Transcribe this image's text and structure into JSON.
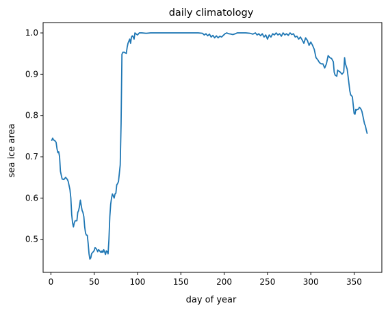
{
  "chart_data": {
    "type": "line",
    "title": "daily climatology",
    "xlabel": "day of year",
    "ylabel": "sea ice area",
    "xlim": [
      -9,
      382
    ],
    "ylim": [
      0.42,
      1.025
    ],
    "xticks": [
      0,
      50,
      100,
      150,
      200,
      250,
      300,
      350
    ],
    "xtick_labels": [
      "0",
      "50",
      "100",
      "150",
      "200",
      "250",
      "300",
      "350"
    ],
    "yticks": [
      0.5,
      0.6,
      0.7,
      0.8,
      0.9,
      1.0
    ],
    "ytick_labels": [
      "0.5",
      "0.6",
      "0.7",
      "0.8",
      "0.9",
      "1.0"
    ],
    "grid": false,
    "series": [
      {
        "color": "#1f77b4",
        "points": [
          [
            1,
            0.74
          ],
          [
            2,
            0.745
          ],
          [
            3,
            0.741
          ],
          [
            5,
            0.738
          ],
          [
            6,
            0.735
          ],
          [
            7,
            0.72
          ],
          [
            8,
            0.71
          ],
          [
            9,
            0.712
          ],
          [
            10,
            0.7
          ],
          [
            11,
            0.665
          ],
          [
            12,
            0.655
          ],
          [
            13,
            0.646
          ],
          [
            15,
            0.645
          ],
          [
            17,
            0.65
          ],
          [
            19,
            0.645
          ],
          [
            20,
            0.64
          ],
          [
            22,
            0.62
          ],
          [
            23,
            0.6
          ],
          [
            24,
            0.56
          ],
          [
            25,
            0.54
          ],
          [
            26,
            0.53
          ],
          [
            27,
            0.54
          ],
          [
            28,
            0.545
          ],
          [
            30,
            0.545
          ],
          [
            31,
            0.565
          ],
          [
            32,
            0.57
          ],
          [
            33,
            0.58
          ],
          [
            34,
            0.595
          ],
          [
            35,
            0.582
          ],
          [
            36,
            0.57
          ],
          [
            37,
            0.565
          ],
          [
            38,
            0.555
          ],
          [
            39,
            0.53
          ],
          [
            40,
            0.515
          ],
          [
            41,
            0.51
          ],
          [
            42,
            0.51
          ],
          [
            43,
            0.49
          ],
          [
            44,
            0.465
          ],
          [
            45,
            0.452
          ],
          [
            46,
            0.455
          ],
          [
            47,
            0.465
          ],
          [
            48,
            0.468
          ],
          [
            49,
            0.47
          ],
          [
            50,
            0.473
          ],
          [
            51,
            0.48
          ],
          [
            52,
            0.478
          ],
          [
            53,
            0.475
          ],
          [
            54,
            0.47
          ],
          [
            55,
            0.475
          ],
          [
            56,
            0.473
          ],
          [
            57,
            0.47
          ],
          [
            58,
            0.468
          ],
          [
            59,
            0.472
          ],
          [
            60,
            0.468
          ],
          [
            61,
            0.475
          ],
          [
            62,
            0.47
          ],
          [
            63,
            0.463
          ],
          [
            64,
            0.472
          ],
          [
            65,
            0.47
          ],
          [
            66,
            0.465
          ],
          [
            67,
            0.5
          ],
          [
            68,
            0.555
          ],
          [
            69,
            0.585
          ],
          [
            70,
            0.6
          ],
          [
            71,
            0.61
          ],
          [
            72,
            0.605
          ],
          [
            73,
            0.6
          ],
          [
            74,
            0.61
          ],
          [
            75,
            0.612
          ],
          [
            76,
            0.632
          ],
          [
            77,
            0.635
          ],
          [
            78,
            0.64
          ],
          [
            79,
            0.66
          ],
          [
            80,
            0.68
          ],
          [
            81,
            0.78
          ],
          [
            82,
            0.948
          ],
          [
            83,
            0.953
          ],
          [
            85,
            0.953
          ],
          [
            87,
            0.95
          ],
          [
            88,
            0.965
          ],
          [
            89,
            0.975
          ],
          [
            90,
            0.98
          ],
          [
            91,
            0.985
          ],
          [
            92,
            0.975
          ],
          [
            93,
            0.99
          ],
          [
            94,
            0.993
          ],
          [
            95,
            0.99
          ],
          [
            96,
            0.985
          ],
          [
            97,
            1.0
          ],
          [
            98,
            0.998
          ],
          [
            100,
            0.995
          ],
          [
            102,
            1.0
          ],
          [
            105,
            1.0
          ],
          [
            110,
            0.999
          ],
          [
            115,
            1.0
          ],
          [
            120,
            1.0
          ],
          [
            130,
            1.0
          ],
          [
            140,
            1.0
          ],
          [
            150,
            1.0
          ],
          [
            160,
            1.0
          ],
          [
            170,
            1.0
          ],
          [
            175,
            0.999
          ],
          [
            177,
            0.995
          ],
          [
            179,
            0.998
          ],
          [
            181,
            0.993
          ],
          [
            183,
            0.997
          ],
          [
            185,
            0.99
          ],
          [
            187,
            0.994
          ],
          [
            189,
            0.988
          ],
          [
            191,
            0.993
          ],
          [
            193,
            0.988
          ],
          [
            195,
            0.992
          ],
          [
            197,
            0.99
          ],
          [
            199,
            0.994
          ],
          [
            201,
            0.998
          ],
          [
            203,
            1.0
          ],
          [
            205,
            0.998
          ],
          [
            208,
            0.997
          ],
          [
            210,
            0.996
          ],
          [
            213,
            0.998
          ],
          [
            215,
            1.0
          ],
          [
            220,
            1.0
          ],
          [
            225,
            1.0
          ],
          [
            230,
            0.999
          ],
          [
            233,
            0.997
          ],
          [
            236,
            1.0
          ],
          [
            238,
            0.995
          ],
          [
            240,
            0.998
          ],
          [
            242,
            0.993
          ],
          [
            244,
            0.998
          ],
          [
            246,
            0.99
          ],
          [
            248,
            0.995
          ],
          [
            250,
            0.985
          ],
          [
            252,
            0.995
          ],
          [
            254,
            0.99
          ],
          [
            256,
            0.998
          ],
          [
            258,
            0.995
          ],
          [
            260,
            1.0
          ],
          [
            262,
            0.995
          ],
          [
            264,
            0.998
          ],
          [
            266,
            0.992
          ],
          [
            268,
            1.0
          ],
          [
            270,
            0.995
          ],
          [
            272,
            0.998
          ],
          [
            274,
            0.994
          ],
          [
            276,
            1.0
          ],
          [
            278,
            0.996
          ],
          [
            280,
            0.998
          ],
          [
            282,
            0.99
          ],
          [
            284,
            0.992
          ],
          [
            286,
            0.985
          ],
          [
            288,
            0.99
          ],
          [
            290,
            0.983
          ],
          [
            292,
            0.975
          ],
          [
            294,
            0.988
          ],
          [
            296,
            0.982
          ],
          [
            298,
            0.97
          ],
          [
            300,
            0.978
          ],
          [
            302,
            0.97
          ],
          [
            304,
            0.96
          ],
          [
            306,
            0.94
          ],
          [
            308,
            0.935
          ],
          [
            310,
            0.928
          ],
          [
            312,
            0.925
          ],
          [
            314,
            0.925
          ],
          [
            316,
            0.915
          ],
          [
            318,
            0.925
          ],
          [
            320,
            0.945
          ],
          [
            322,
            0.94
          ],
          [
            324,
            0.938
          ],
          [
            326,
            0.93
          ],
          [
            327,
            0.905
          ],
          [
            328,
            0.898
          ],
          [
            330,
            0.895
          ],
          [
            331,
            0.91
          ],
          [
            332,
            0.908
          ],
          [
            334,
            0.905
          ],
          [
            336,
            0.9
          ],
          [
            338,
            0.905
          ],
          [
            339,
            0.94
          ],
          [
            340,
            0.925
          ],
          [
            342,
            0.912
          ],
          [
            343,
            0.895
          ],
          [
            344,
            0.878
          ],
          [
            345,
            0.86
          ],
          [
            346,
            0.85
          ],
          [
            347,
            0.848
          ],
          [
            348,
            0.845
          ],
          [
            349,
            0.825
          ],
          [
            350,
            0.805
          ],
          [
            351,
            0.803
          ],
          [
            352,
            0.815
          ],
          [
            353,
            0.813
          ],
          [
            354,
            0.815
          ],
          [
            355,
            0.815
          ],
          [
            356,
            0.82
          ],
          [
            357,
            0.818
          ],
          [
            358,
            0.815
          ],
          [
            359,
            0.81
          ],
          [
            360,
            0.8
          ],
          [
            361,
            0.79
          ],
          [
            362,
            0.78
          ],
          [
            363,
            0.775
          ],
          [
            364,
            0.765
          ],
          [
            365,
            0.757
          ]
        ]
      }
    ]
  }
}
